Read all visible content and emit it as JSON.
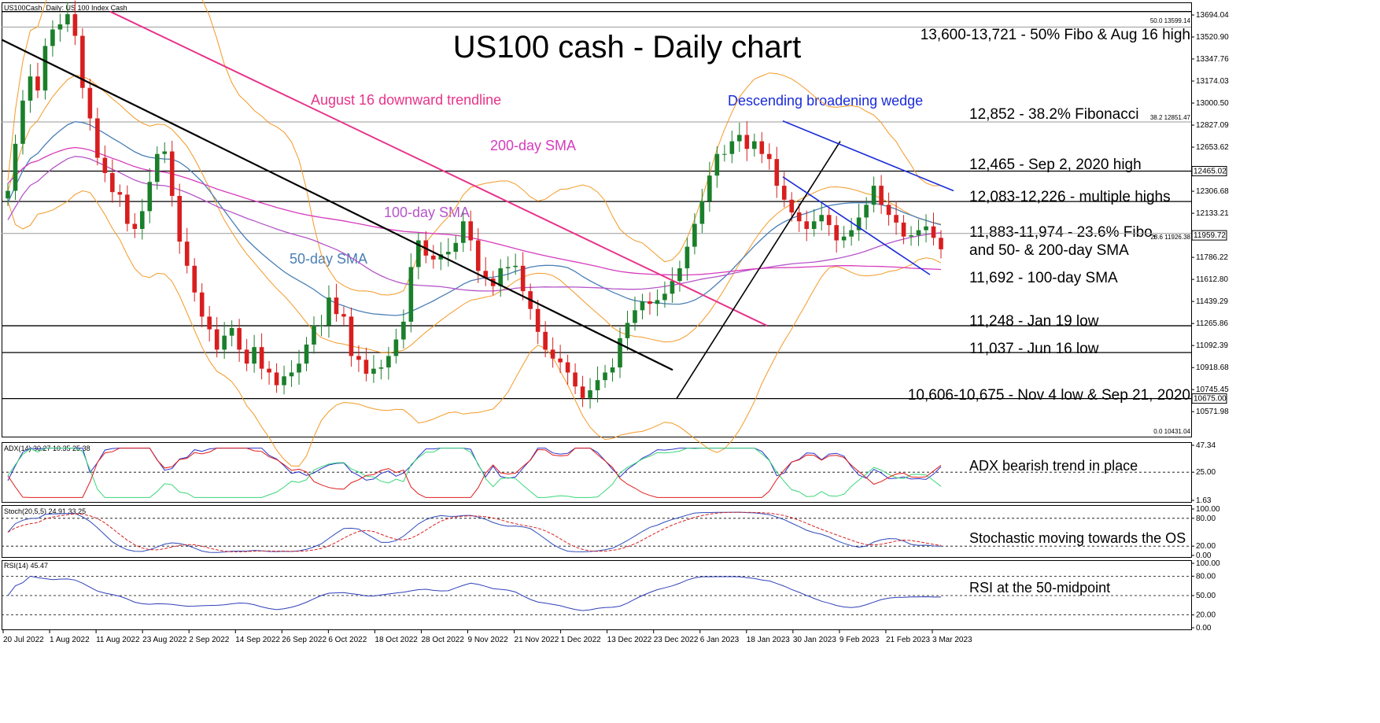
{
  "chart_data": {
    "type": "candlestick",
    "title": "US100 cash - Daily chart",
    "header": "US100Cash, Daily:  US 100 Index Cash",
    "x_ticks": [
      "20 Jul 2022",
      "1 Aug 2022",
      "11 Aug 2022",
      "23 Aug 2022",
      "2 Sep 2022",
      "14 Sep 2022",
      "26 Sep 2022",
      "6 Oct 2022",
      "18 Oct 2022",
      "28 Oct 2022",
      "9 Nov 2022",
      "21 Nov 2022",
      "1 Dec 2022",
      "13 Dec 2022",
      "23 Dec 2022",
      "6 Jan 2023",
      "18 Jan 2023",
      "30 Jan 2023",
      "9 Feb 2023",
      "21 Feb 2023",
      "3 Mar 2023"
    ],
    "price_axis": [
      "13694.04",
      "13520.90",
      "13347.76",
      "13174.03",
      "13000.50",
      "12827.09",
      "12653.62",
      "12306.68",
      "12133.21",
      "11786.22",
      "11612.80",
      "11439.29",
      "11265.86",
      "11092.39",
      "10918.68",
      "10745.45",
      "10571.98"
    ],
    "price_boxes": [
      "12465.02",
      "11959.72",
      "10675.00"
    ],
    "price_range": [
      10431.04,
      13722
    ],
    "series": [
      {
        "name": "Candles (approx. daily close)",
        "values": [
          12310,
          12680,
          13020,
          13210,
          13100,
          13450,
          13580,
          13620,
          13700,
          13530,
          13120,
          12880,
          12570,
          12450,
          12300,
          12280,
          12050,
          12010,
          12150,
          12380,
          12600,
          12620,
          12270,
          11910,
          11720,
          11510,
          11320,
          11220,
          11060,
          11170,
          11230,
          11060,
          10950,
          11080,
          10910,
          10880,
          10780,
          10850,
          10880,
          10950,
          11100,
          11250,
          11250,
          11470,
          11340,
          11320,
          11010,
          10980,
          10870,
          10910,
          10920,
          11010,
          11140,
          11280,
          11710,
          11920,
          11800,
          11770,
          11810,
          11830,
          11900,
          12070,
          11920,
          11680,
          11620,
          11560,
          11700,
          11710,
          11720,
          11520,
          11380,
          11200,
          11060,
          10990,
          10960,
          10880,
          10770,
          10680,
          10740,
          10820,
          10880,
          10920,
          11150,
          11270,
          11370,
          11440,
          11420,
          11450,
          11500,
          11600,
          11700,
          11870,
          12050,
          12230,
          12430,
          12600,
          12600,
          12700,
          12750,
          12640,
          12700,
          12600,
          12560,
          12350,
          12240,
          12140,
          12070,
          12010,
          12070,
          12120,
          12040,
          11920,
          11950,
          12000,
          12100,
          12200,
          12350,
          12200,
          12120,
          12060,
          11950,
          11960,
          12000,
          12030,
          11940,
          11850
        ]
      }
    ],
    "levels": [
      {
        "price": 13721,
        "label": "13,600-13,721 - 50% Fibo & Aug 16 high"
      },
      {
        "price": 12852,
        "label": "12,852 - 38.2% Fibonacci"
      },
      {
        "price": 12465,
        "label": "12,465 - Sep 2, 2020 high"
      },
      {
        "price": 12226,
        "label": "12,083-12,226 - multiple highs"
      },
      {
        "price": 11974,
        "label": "11,883-11,974 - 23.6% Fibo,"
      },
      {
        "price": 11883,
        "label": "and 50- & 200-day SMA"
      },
      {
        "price": 11692,
        "label": "11,692 - 100-day SMA"
      },
      {
        "price": 11248,
        "label": "11,248 - Jan 19 low"
      },
      {
        "price": 11037,
        "label": "11,037 - Jun 16 low"
      },
      {
        "price": 10675,
        "label": "10,606-10,675 - Nov 4 low & Sep 21, 2020"
      }
    ],
    "fibo_labels": [
      "50.0 13599.14",
      "38.2 12851.47",
      "23.6 11926.38",
      "0.0 10431.04"
    ],
    "chart_annotations": [
      "August 16 downward trendline",
      "200-day SMA",
      "100-day SMA",
      "50-day SMA",
      "Descending broadening wedge"
    ],
    "indicators": [
      {
        "name": "ADX(14) 30.27 10.35 25.38",
        "axis": [
          "47.34",
          "25.00",
          "1.63"
        ],
        "note": "ADX bearish trend in place"
      },
      {
        "name": "Stoch(20,5,5) 24.91 33.25",
        "axis": [
          "100.00",
          "80.00",
          "20.00",
          "0.00"
        ],
        "note": "Stochastic moving towards the OS"
      },
      {
        "name": "RSI(14) 45.47",
        "axis": [
          "100.00",
          "80.00",
          "50.00",
          "20.00",
          "0.00"
        ],
        "note": "RSI at the 50-midpoint"
      }
    ],
    "colors": {
      "up": "#1a7f2a",
      "down": "#d81e1e",
      "sma50": "#4a7fb5",
      "sma100": "#b555c9",
      "sma200": "#d63bbd",
      "bands": "#f39a27",
      "aug16": "#e8338a",
      "wedge": "#1a2bd8",
      "adx": "#2a32c8",
      "plus_di": "#3ad67a",
      "minus_di": "#e01c1c",
      "stoch_main": "#2f4bb8",
      "stoch_signal": "#d82020",
      "rsi": "#2f3fb8"
    }
  }
}
